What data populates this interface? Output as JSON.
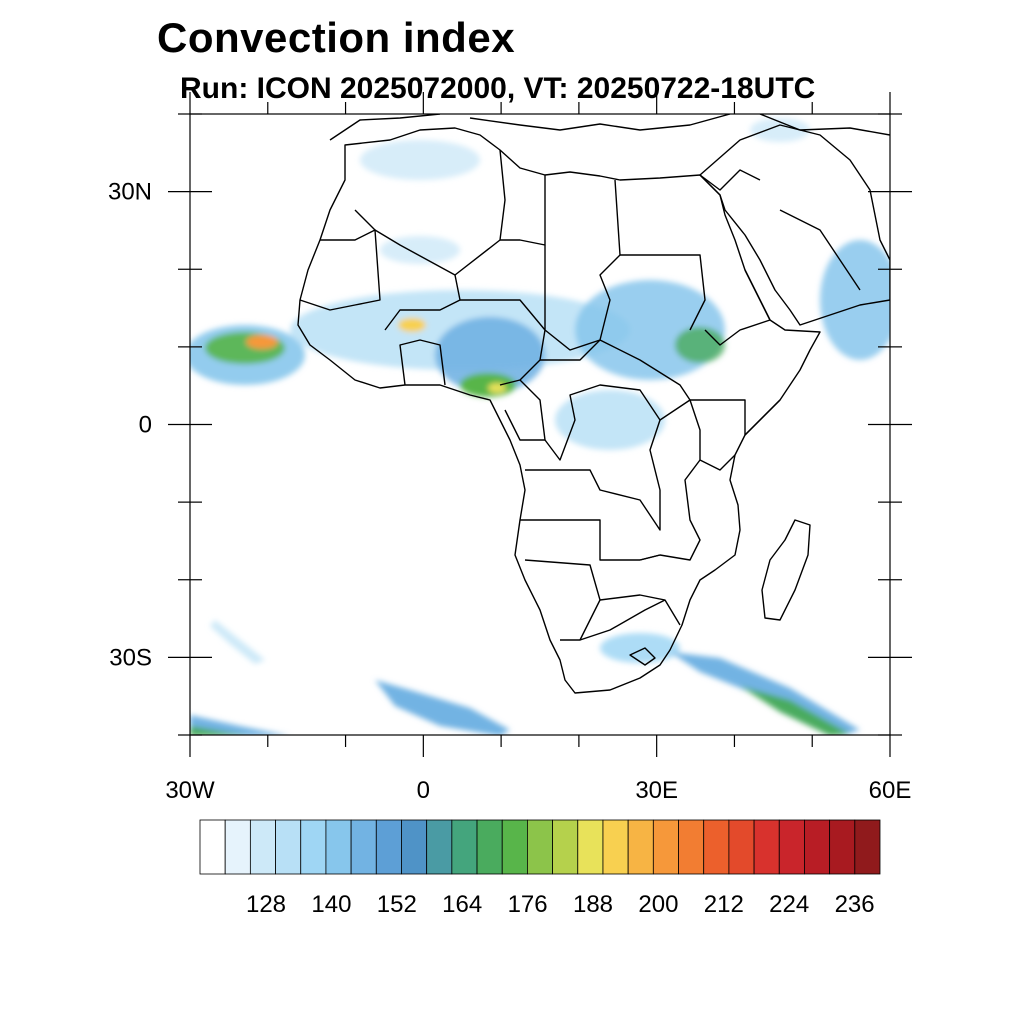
{
  "title": "Convection index",
  "subtitle": "Run: ICON 2025072000,  VT: 20250722-18UTC",
  "map": {
    "lon_range": [
      -30,
      60
    ],
    "lat_range": [
      -40,
      40
    ],
    "lat_labels": [
      {
        "lat": 30,
        "label": "30N"
      },
      {
        "lat": 0,
        "label": "0"
      },
      {
        "lat": -30,
        "label": "30S"
      }
    ],
    "lon_labels": [
      {
        "lon": -30,
        "label": "30W"
      },
      {
        "lon": 0,
        "label": "0"
      },
      {
        "lon": 30,
        "label": "30E"
      },
      {
        "lon": 60,
        "label": "60E"
      }
    ]
  },
  "colorbar": {
    "colors": [
      "#ffffff",
      "#e6f3fc",
      "#cde9f8",
      "#b8e0f6",
      "#9fd6f4",
      "#87c6ec",
      "#72b3e3",
      "#5d9fd6",
      "#4f93c7",
      "#4a9ba4",
      "#44a57d",
      "#4aab5e",
      "#58b54a",
      "#8cc44a",
      "#b5d14c",
      "#e8e25a",
      "#f8d050",
      "#f7b444",
      "#f6983a",
      "#f27d32",
      "#ec602c",
      "#e34a2b",
      "#d8322d",
      "#c9252b",
      "#b81d25",
      "#a81a20",
      "#901a1c"
    ],
    "labels": [
      "128",
      "140",
      "152",
      "164",
      "176",
      "188",
      "200",
      "212",
      "224",
      "236"
    ]
  }
}
